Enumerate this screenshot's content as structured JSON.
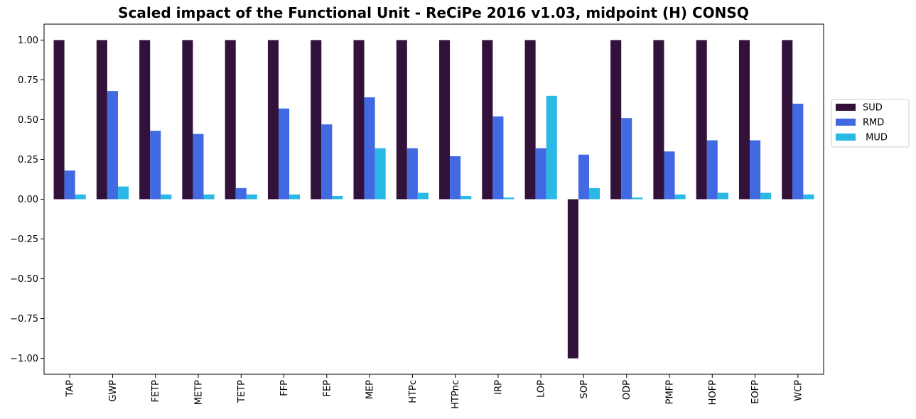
{
  "chart_data": {
    "type": "bar",
    "title": "Scaled impact of the Functional Unit - ReCiPe 2016 v1.03, midpoint (H) CONSQ",
    "xlabel": "",
    "ylabel": "",
    "ylim": [
      -1.1,
      1.1
    ],
    "yticks": [
      1.0,
      0.75,
      0.5,
      0.25,
      0.0,
      -0.25,
      -0.5,
      -0.75,
      -1.0
    ],
    "ytick_labels": [
      "1.00",
      "0.75",
      "0.50",
      "0.25",
      "0.00",
      "−0.25",
      "−0.50",
      "−0.75",
      "−1.00"
    ],
    "grid": false,
    "legend_position": "right, outside plot",
    "categories": [
      "TAP",
      "GWP",
      "FETP",
      "METP",
      "TETP",
      "FFP",
      "FEP",
      "MEP",
      "HTPc",
      "HTPnc",
      "IRP",
      "LOP",
      "SOP",
      "ODP",
      "PMFP",
      "HOFP",
      "EOFP",
      "WCP"
    ],
    "series": [
      {
        "name": "SUD",
        "color": "#32123a",
        "values": [
          1.0,
          1.0,
          1.0,
          1.0,
          1.0,
          1.0,
          1.0,
          1.0,
          1.0,
          1.0,
          1.0,
          1.0,
          -1.0,
          1.0,
          1.0,
          1.0,
          1.0,
          1.0
        ]
      },
      {
        "name": "RMD",
        "color": "#4169e1",
        "values": [
          0.18,
          0.68,
          0.43,
          0.41,
          0.07,
          0.57,
          0.47,
          0.64,
          0.32,
          0.27,
          0.52,
          0.32,
          0.28,
          0.51,
          0.3,
          0.37,
          0.37,
          0.6
        ]
      },
      {
        "name": " MUD",
        "color": "#2ab8e6",
        "values": [
          0.03,
          0.08,
          0.03,
          0.03,
          0.03,
          0.03,
          0.02,
          0.32,
          0.04,
          0.02,
          0.01,
          0.65,
          0.07,
          0.01,
          0.03,
          0.04,
          0.04,
          0.03
        ]
      }
    ]
  }
}
